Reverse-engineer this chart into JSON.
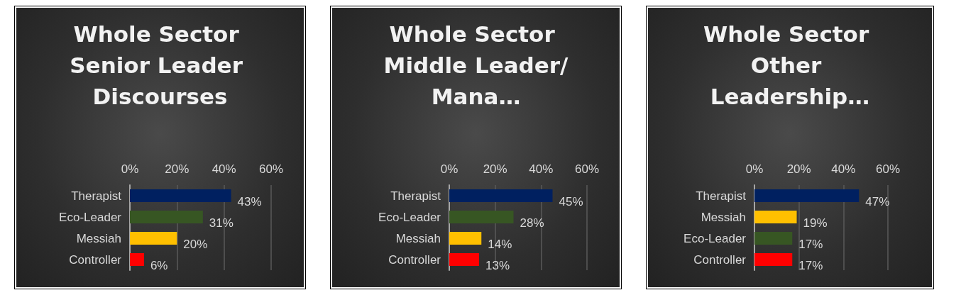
{
  "chart_data": [
    {
      "type": "bar",
      "orientation": "horizontal",
      "title": "Whole Sector Senior Leader Discourses",
      "categories": [
        "Therapist",
        "Eco-Leader",
        "Messiah",
        "Controller"
      ],
      "values": [
        43,
        31,
        20,
        6
      ],
      "value_labels": [
        "43%",
        "31%",
        "20%",
        "6%"
      ],
      "colors": [
        "#002060",
        "#375623",
        "#ffc000",
        "#ff0000"
      ],
      "xlim": [
        0,
        60
      ],
      "xticks": [
        {
          "value": 0,
          "label": "0%"
        },
        {
          "value": 20,
          "label": "20%"
        },
        {
          "value": 40,
          "label": "40%"
        },
        {
          "value": 60,
          "label": "60%"
        }
      ],
      "grid": "x"
    },
    {
      "type": "bar",
      "orientation": "horizontal",
      "title": "Whole Sector Middle Leader/Mana…",
      "categories": [
        "Therapist",
        "Eco-Leader",
        "Messiah",
        "Controller"
      ],
      "values": [
        45,
        28,
        14,
        13
      ],
      "value_labels": [
        "45%",
        "28%",
        "14%",
        "13%"
      ],
      "colors": [
        "#002060",
        "#375623",
        "#ffc000",
        "#ff0000"
      ],
      "xlim": [
        0,
        60
      ],
      "xticks": [
        {
          "value": 0,
          "label": "0%"
        },
        {
          "value": 20,
          "label": "20%"
        },
        {
          "value": 40,
          "label": "40%"
        },
        {
          "value": 60,
          "label": "60%"
        }
      ],
      "grid": "x"
    },
    {
      "type": "bar",
      "orientation": "horizontal",
      "title": "Whole Sector Other Leadership…",
      "categories": [
        "Therapist",
        "Messiah",
        "Eco-Leader",
        "Controller"
      ],
      "values": [
        47,
        19,
        17,
        17
      ],
      "value_labels": [
        "47%",
        "19%",
        "17%",
        "17%"
      ],
      "colors": [
        "#002060",
        "#ffc000",
        "#375623",
        "#ff0000"
      ],
      "xlim": [
        0,
        60
      ],
      "xticks": [
        {
          "value": 0,
          "label": "0%"
        },
        {
          "value": 20,
          "label": "20%"
        },
        {
          "value": 40,
          "label": "40%"
        },
        {
          "value": 60,
          "label": "60%"
        }
      ],
      "grid": "x"
    }
  ]
}
